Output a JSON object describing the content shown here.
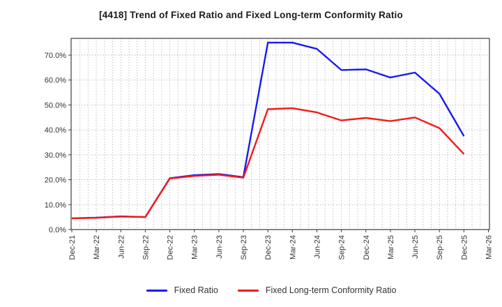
{
  "title": "[4418]  Trend of Fixed Ratio and Fixed Long-term Conformity Ratio",
  "chart_data": {
    "type": "line",
    "categories": [
      "Dec-21",
      "Mar-22",
      "Jun-22",
      "Sep-22",
      "Dec-22",
      "Mar-23",
      "Jun-23",
      "Sep-23",
      "Dec-23",
      "Mar-24",
      "Jun-24",
      "Sep-24",
      "Dec-24",
      "Mar-25",
      "Jun-25",
      "Sep-25",
      "Dec-25",
      "Mar-26"
    ],
    "series": [
      {
        "name": "Fixed Ratio",
        "color": "#1a1af2",
        "values": [
          4.5,
          4.8,
          5.3,
          5.0,
          20.6,
          21.8,
          22.3,
          21.0,
          75.0,
          75.0,
          72.5,
          64.0,
          64.3,
          61.0,
          63.0,
          54.5,
          37.5,
          null
        ]
      },
      {
        "name": "Fixed Long-term Conformity Ratio",
        "color": "#f21a1a",
        "values": [
          4.5,
          4.7,
          5.2,
          5.0,
          20.5,
          21.5,
          22.0,
          20.8,
          48.3,
          48.7,
          47.0,
          43.8,
          44.8,
          43.5,
          45.0,
          40.7,
          30.3,
          null
        ]
      }
    ],
    "y_ticks": [
      "0.0%",
      "10.0%",
      "20.0%",
      "30.0%",
      "40.0%",
      "50.0%",
      "60.0%",
      "70.0%"
    ],
    "ylim": [
      0,
      77
    ],
    "minor_x_divisions_per_interval": 3,
    "grid": "dotted",
    "legend_position": "bottom",
    "title": "[4418]  Trend of Fixed Ratio and Fixed Long-term Conformity Ratio"
  },
  "legend": {
    "items": [
      {
        "label": "Fixed Ratio",
        "color": "#1a1af2"
      },
      {
        "label": "Fixed Long-term Conformity Ratio",
        "color": "#f21a1a"
      }
    ]
  },
  "colors": {
    "background": "#ffffff",
    "plot_border": "#3c3c3c",
    "gridline": "#9a9a9a",
    "tick_label": "#333333",
    "title_text": "#1a1a1a"
  }
}
